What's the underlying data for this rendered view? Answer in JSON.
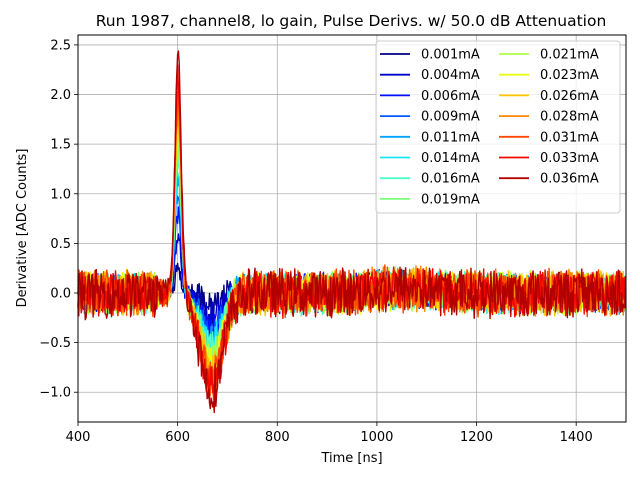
{
  "chart_data": {
    "type": "line",
    "title": "Run 1987, channel8, lo gain, Pulse Derivs. w/ 50.0 dB Attenuation",
    "xlabel": "Time [ns]",
    "ylabel": "Derivative [ADC Counts]",
    "xlim": [
      400,
      1500
    ],
    "ylim": [
      -1.3,
      2.6
    ],
    "xticks": [
      400,
      600,
      800,
      1000,
      1200,
      1400
    ],
    "yticks": [
      -1.0,
      -0.5,
      0.0,
      0.5,
      1.0,
      1.5,
      2.0,
      2.5
    ],
    "xtick_labels": [
      "400",
      "600",
      "800",
      "1000",
      "1200",
      "1400"
    ],
    "ytick_labels": [
      "−1.0",
      "−0.5",
      "0.0",
      "0.5",
      "1.0",
      "1.5",
      "2.0",
      "2.5"
    ],
    "grid": true,
    "legend_position": "top-right",
    "legend_columns": 2,
    "series": [
      {
        "name": "0.001mA",
        "color": "#000080",
        "peak": 0.25,
        "trough": -0.1,
        "noise": 0.2
      },
      {
        "name": "0.004mA",
        "color": "#0000c8",
        "peak": 0.55,
        "trough": -0.25,
        "noise": 0.2
      },
      {
        "name": "0.006mA",
        "color": "#0010ff",
        "peak": 0.8,
        "trough": -0.35,
        "noise": 0.21
      },
      {
        "name": "0.009mA",
        "color": "#0058ff",
        "peak": 1.0,
        "trough": -0.45,
        "noise": 0.21
      },
      {
        "name": "0.011mA",
        "color": "#00a4ff",
        "peak": 1.15,
        "trough": -0.5,
        "noise": 0.22
      },
      {
        "name": "0.014mA",
        "color": "#1ae7f4",
        "peak": 1.25,
        "trough": -0.55,
        "noise": 0.22
      },
      {
        "name": "0.016mA",
        "color": "#4dffca",
        "peak": 1.4,
        "trough": -0.6,
        "noise": 0.23
      },
      {
        "name": "0.019mA",
        "color": "#7dff7a",
        "peak": 1.5,
        "trough": -0.65,
        "noise": 0.23
      },
      {
        "name": "0.021mA",
        "color": "#b0ff47",
        "peak": 1.6,
        "trough": -0.7,
        "noise": 0.24
      },
      {
        "name": "0.023mA",
        "color": "#e4ff13",
        "peak": 1.7,
        "trough": -0.75,
        "noise": 0.24
      },
      {
        "name": "0.026mA",
        "color": "#ffc400",
        "peak": 1.8,
        "trough": -0.8,
        "noise": 0.25
      },
      {
        "name": "0.028mA",
        "color": "#ff8600",
        "peak": 1.9,
        "trough": -0.85,
        "noise": 0.25
      },
      {
        "name": "0.031mA",
        "color": "#ff4800",
        "peak": 2.0,
        "trough": -0.9,
        "noise": 0.26
      },
      {
        "name": "0.033mA",
        "color": "#f10800",
        "peak": 2.2,
        "trough": -0.95,
        "noise": 0.26
      },
      {
        "name": "0.036mA",
        "color": "#b20000",
        "peak": 2.4,
        "trough": -1.0,
        "noise": 0.27
      }
    ]
  }
}
